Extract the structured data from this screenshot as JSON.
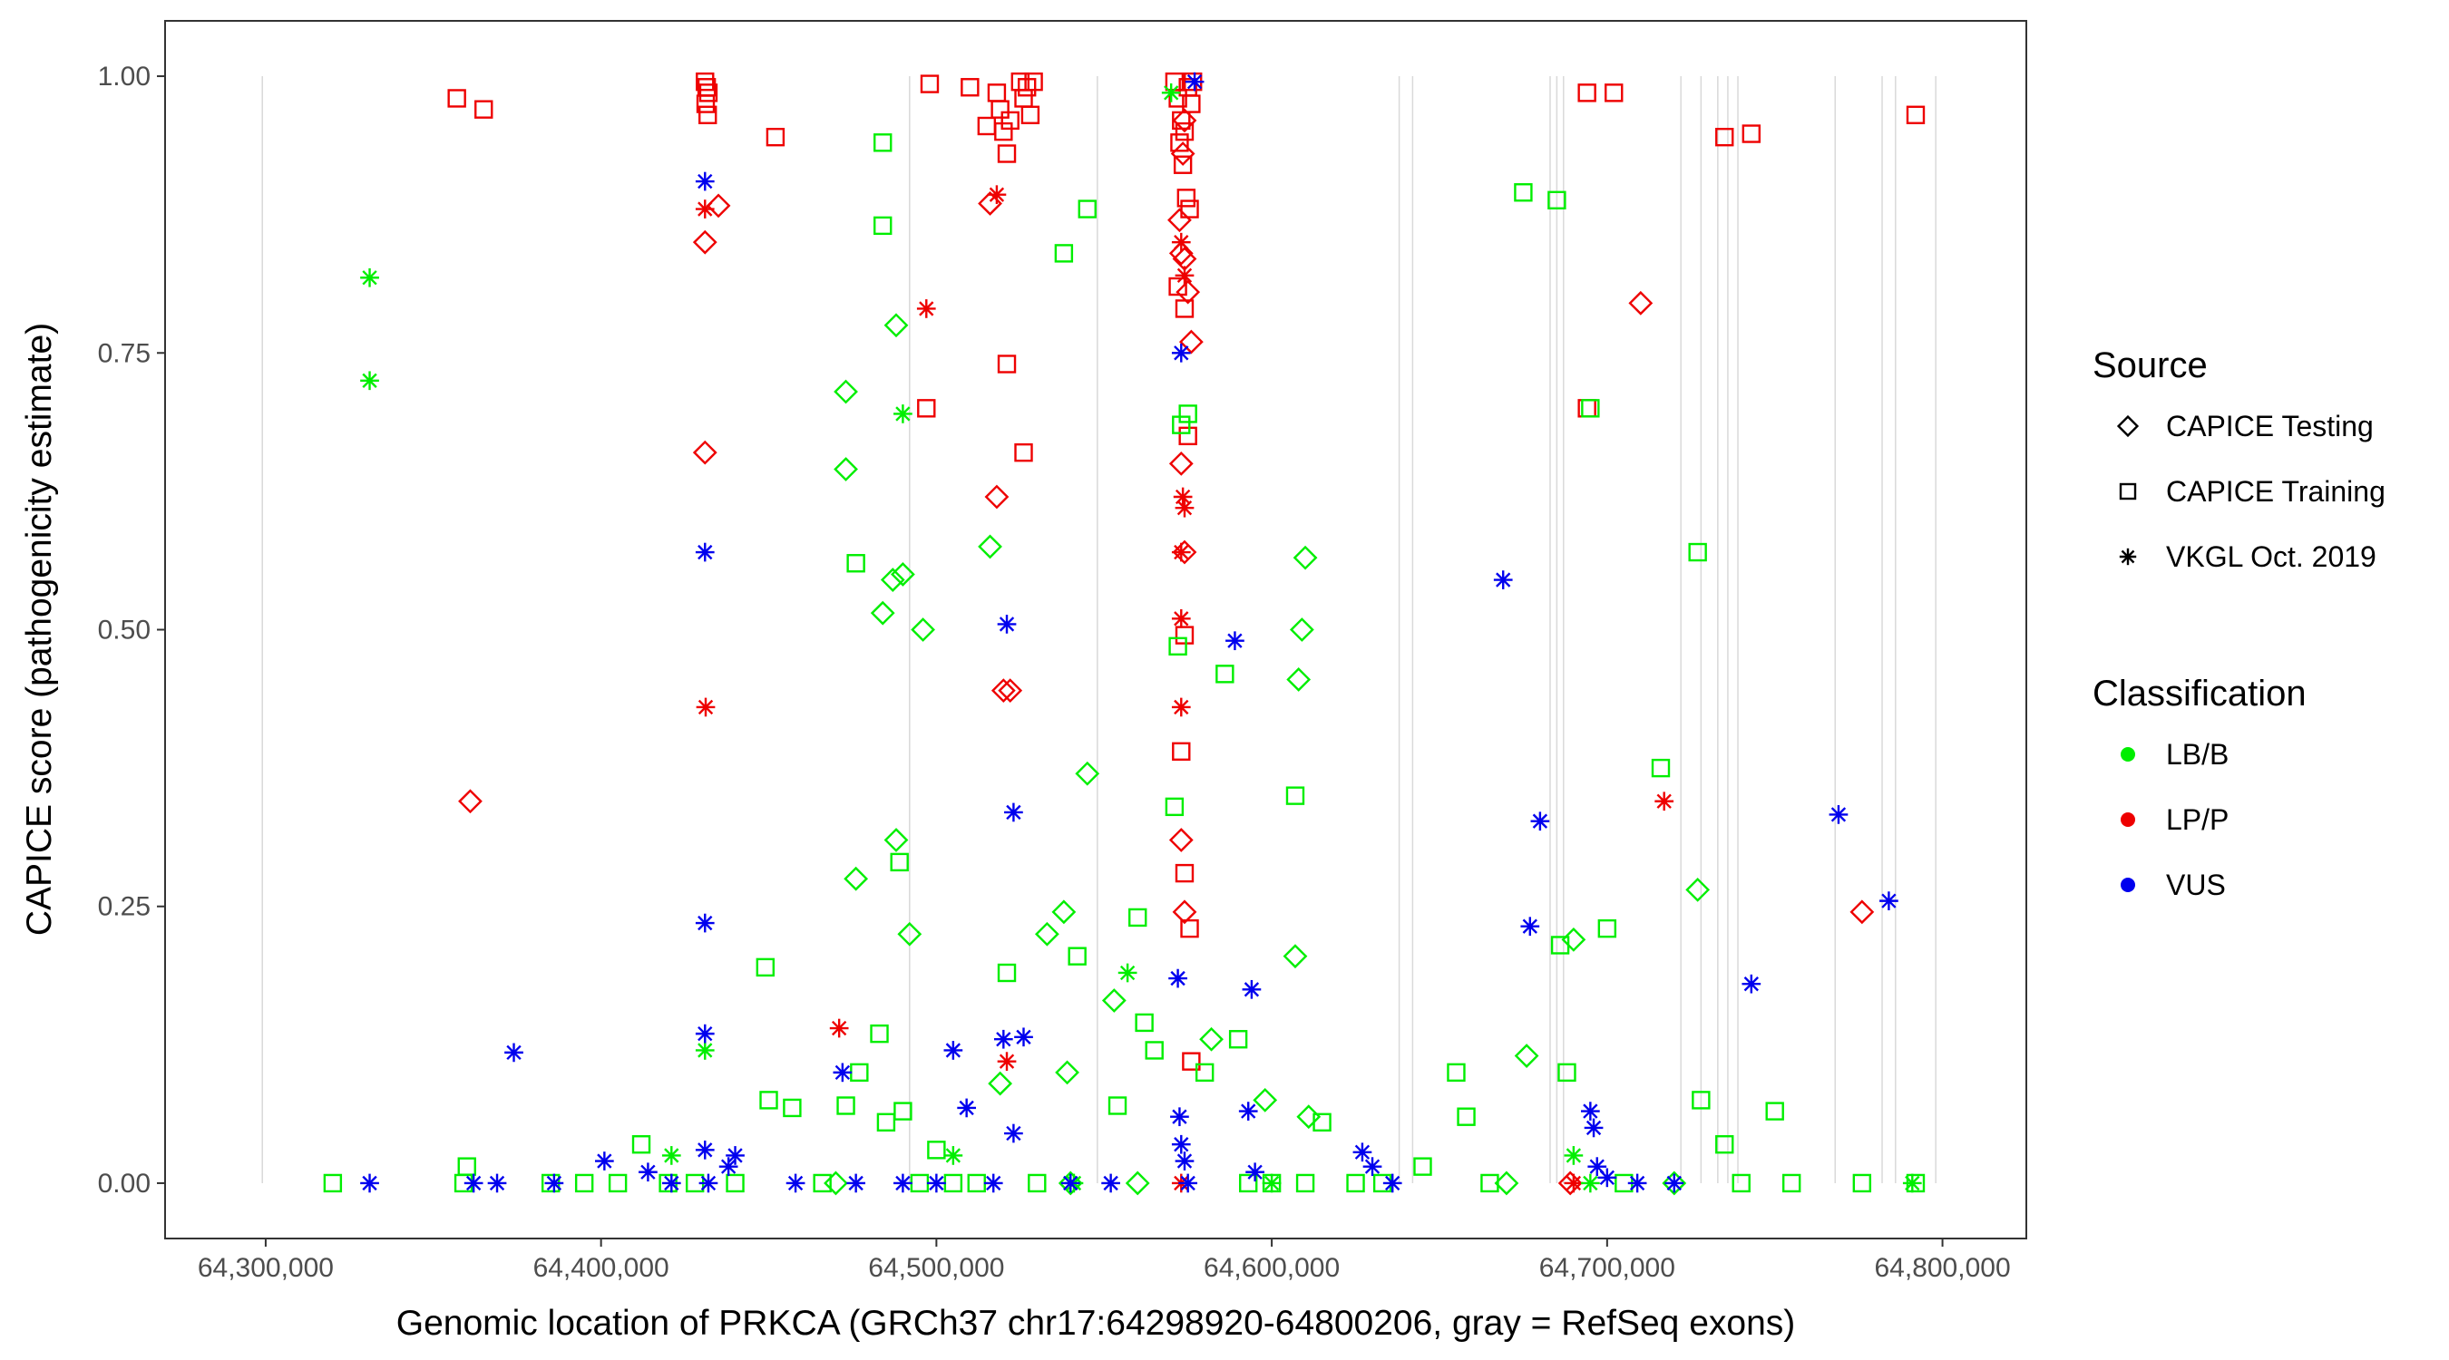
{
  "chart_data": {
    "type": "scatter",
    "xlabel": "Genomic location of PRKCA (GRCh37 chr17:64298920-64800206, gray = RefSeq exons)",
    "ylabel": "CAPICE score (pathogenicity estimate)",
    "xlim": [
      64270000,
      64825000
    ],
    "ylim": [
      -0.05,
      1.05
    ],
    "x_ticks": [
      64300000,
      64400000,
      64500000,
      64600000,
      64700000,
      64800000
    ],
    "x_tick_labels": [
      "64,300,000",
      "64,400,000",
      "64,500,000",
      "64,600,000",
      "64,700,000",
      "64,800,000"
    ],
    "y_ticks": [
      0,
      0.25,
      0.5,
      0.75,
      1.0
    ],
    "y_tick_labels": [
      "0.00",
      "0.25",
      "0.50",
      "0.75",
      "1.00"
    ],
    "exon_positions": [
      64299000,
      64492000,
      64548000,
      64638000,
      64642000,
      64683000,
      64685000,
      64687000,
      64722000,
      64728000,
      64733000,
      64736000,
      64739000,
      64768000,
      64782000,
      64786000,
      64798000
    ],
    "legend": {
      "source_title": "Source",
      "source_items": [
        {
          "label": "CAPICE Testing",
          "shape": "diamond"
        },
        {
          "label": "CAPICE Training",
          "shape": "square"
        },
        {
          "label": "VKGL Oct. 2019",
          "shape": "star"
        }
      ],
      "class_title": "Classification",
      "class_items": [
        {
          "label": "LB/B",
          "color": "#00ee00"
        },
        {
          "label": "LP/P",
          "color": "#ee0000"
        },
        {
          "label": "VUS",
          "color": "#0000ee"
        }
      ]
    },
    "series": [
      {
        "source": "CAPICE Training",
        "class": "LP/P",
        "points": [
          [
            64357000,
            0.98
          ],
          [
            64365000,
            0.97
          ],
          [
            64431000,
            0.995
          ],
          [
            64431500,
            0.99
          ],
          [
            64432000,
            0.985
          ],
          [
            64431200,
            0.975
          ],
          [
            64431800,
            0.965
          ],
          [
            64452000,
            0.945
          ],
          [
            64498000,
            0.993
          ],
          [
            64510000,
            0.99
          ],
          [
            64515000,
            0.955
          ],
          [
            64518000,
            0.985
          ],
          [
            64519000,
            0.97
          ],
          [
            64520000,
            0.95
          ],
          [
            64521000,
            0.93
          ],
          [
            64522000,
            0.96
          ],
          [
            64525000,
            0.995
          ],
          [
            64526000,
            0.98
          ],
          [
            64527000,
            0.99
          ],
          [
            64528000,
            0.965
          ],
          [
            64529000,
            0.995
          ],
          [
            64571000,
            0.995
          ],
          [
            64572000,
            0.98
          ],
          [
            64573000,
            0.96
          ],
          [
            64574000,
            0.95
          ],
          [
            64575000,
            0.99
          ],
          [
            64576000,
            0.975
          ],
          [
            64572500,
            0.94
          ],
          [
            64573500,
            0.92
          ],
          [
            64574500,
            0.89
          ],
          [
            64575500,
            0.88
          ],
          [
            64576500,
            0.995
          ],
          [
            64572000,
            0.81
          ],
          [
            64574000,
            0.79
          ],
          [
            64521000,
            0.74
          ],
          [
            64497000,
            0.7
          ],
          [
            64526000,
            0.66
          ],
          [
            64575000,
            0.675
          ],
          [
            64574000,
            0.495
          ],
          [
            64573000,
            0.39
          ],
          [
            64574000,
            0.28
          ],
          [
            64575500,
            0.23
          ],
          [
            64576000,
            0.11
          ],
          [
            64694000,
            0.985
          ],
          [
            64702000,
            0.985
          ],
          [
            64735000,
            0.945
          ],
          [
            64743000,
            0.948
          ],
          [
            64792000,
            0.965
          ],
          [
            64694000,
            0.7
          ]
        ]
      },
      {
        "source": "CAPICE Testing",
        "class": "LP/P",
        "points": [
          [
            64431000,
            0.85
          ],
          [
            64435000,
            0.883
          ],
          [
            64431000,
            0.66
          ],
          [
            64516000,
            0.885
          ],
          [
            64361000,
            0.345
          ],
          [
            64518000,
            0.62
          ],
          [
            64520000,
            0.445
          ],
          [
            64522000,
            0.445
          ],
          [
            64573000,
            0.84
          ],
          [
            64574000,
            0.835
          ],
          [
            64575000,
            0.805
          ],
          [
            64576000,
            0.76
          ],
          [
            64573000,
            0.65
          ],
          [
            64574000,
            0.57
          ],
          [
            64573000,
            0.31
          ],
          [
            64574000,
            0.245
          ],
          [
            64574000,
            0.96
          ],
          [
            64573500,
            0.93
          ],
          [
            64572500,
            0.87
          ],
          [
            64710000,
            0.795
          ],
          [
            64776000,
            0.245
          ],
          [
            64689000,
            0.0
          ]
        ]
      },
      {
        "source": "VKGL Oct. 2019",
        "class": "LP/P",
        "points": [
          [
            64431000,
            0.88
          ],
          [
            64431200,
            0.43
          ],
          [
            64471000,
            0.14
          ],
          [
            64497000,
            0.79
          ],
          [
            64518000,
            0.893
          ],
          [
            64521000,
            0.11
          ],
          [
            64573000,
            0.85
          ],
          [
            64574000,
            0.82
          ],
          [
            64573500,
            0.62
          ],
          [
            64574000,
            0.61
          ],
          [
            64573000,
            0.57
          ],
          [
            64573000,
            0.51
          ],
          [
            64573000,
            0.43
          ],
          [
            64573000,
            0.0
          ],
          [
            64717000,
            0.345
          ],
          [
            64690000,
            0.0
          ]
        ]
      },
      {
        "source": "CAPICE Training",
        "class": "LB/B",
        "points": [
          [
            64320000,
            0.0
          ],
          [
            64360000,
            0.015
          ],
          [
            64359000,
            0.0
          ],
          [
            64385000,
            0.0
          ],
          [
            64395000,
            0.0
          ],
          [
            64405000,
            0.0
          ],
          [
            64412000,
            0.035
          ],
          [
            64420000,
            0.0
          ],
          [
            64428000,
            0.0
          ],
          [
            64440000,
            0.0
          ],
          [
            64449000,
            0.195
          ],
          [
            64450000,
            0.075
          ],
          [
            64457000,
            0.068
          ],
          [
            64466000,
            0.0
          ],
          [
            64473000,
            0.07
          ],
          [
            64476000,
            0.56
          ],
          [
            64477000,
            0.1
          ],
          [
            64483000,
            0.135
          ],
          [
            64484000,
            0.94
          ],
          [
            64484000,
            0.865
          ],
          [
            64485000,
            0.055
          ],
          [
            64489000,
            0.29
          ],
          [
            64490000,
            0.065
          ],
          [
            64495000,
            0.0
          ],
          [
            64500000,
            0.03
          ],
          [
            64505000,
            0.0
          ],
          [
            64512000,
            0.0
          ],
          [
            64521000,
            0.19
          ],
          [
            64530000,
            0.0
          ],
          [
            64538000,
            0.84
          ],
          [
            64542000,
            0.205
          ],
          [
            64545000,
            0.88
          ],
          [
            64554000,
            0.07
          ],
          [
            64560000,
            0.24
          ],
          [
            64562000,
            0.145
          ],
          [
            64565000,
            0.12
          ],
          [
            64571000,
            0.34
          ],
          [
            64572000,
            0.485
          ],
          [
            64573000,
            0.685
          ],
          [
            64575000,
            0.695
          ],
          [
            64580000,
            0.1
          ],
          [
            64586000,
            0.46
          ],
          [
            64590000,
            0.13
          ],
          [
            64593000,
            0.0
          ],
          [
            64600000,
            0.0
          ],
          [
            64607000,
            0.35
          ],
          [
            64610000,
            0.0
          ],
          [
            64615000,
            0.055
          ],
          [
            64625000,
            0.0
          ],
          [
            64633000,
            0.0
          ],
          [
            64645000,
            0.015
          ],
          [
            64655000,
            0.1
          ],
          [
            64658000,
            0.06
          ],
          [
            64665000,
            0.0
          ],
          [
            64675000,
            0.895
          ],
          [
            64685000,
            0.888
          ],
          [
            64686000,
            0.215
          ],
          [
            64688000,
            0.1
          ],
          [
            64695000,
            0.7
          ],
          [
            64700000,
            0.23
          ],
          [
            64705000,
            0.0
          ],
          [
            64716000,
            0.375
          ],
          [
            64727000,
            0.57
          ],
          [
            64728000,
            0.075
          ],
          [
            64735000,
            0.035
          ],
          [
            64740000,
            0.0
          ],
          [
            64750000,
            0.065
          ],
          [
            64755000,
            0.0
          ],
          [
            64776000,
            0.0
          ],
          [
            64792000,
            0.0
          ]
        ]
      },
      {
        "source": "CAPICE Testing",
        "class": "LB/B",
        "points": [
          [
            64473000,
            0.715
          ],
          [
            64473000,
            0.645
          ],
          [
            64476000,
            0.275
          ],
          [
            64484000,
            0.515
          ],
          [
            64487000,
            0.545
          ],
          [
            64488000,
            0.775
          ],
          [
            64488000,
            0.31
          ],
          [
            64490000,
            0.55
          ],
          [
            64492000,
            0.225
          ],
          [
            64496000,
            0.5
          ],
          [
            64516000,
            0.575
          ],
          [
            64519000,
            0.09
          ],
          [
            64533000,
            0.225
          ],
          [
            64538000,
            0.245
          ],
          [
            64539000,
            0.1
          ],
          [
            64545000,
            0.37
          ],
          [
            64553000,
            0.165
          ],
          [
            64582000,
            0.13
          ],
          [
            64598000,
            0.075
          ],
          [
            64607000,
            0.205
          ],
          [
            64609000,
            0.5
          ],
          [
            64608000,
            0.455
          ],
          [
            64610000,
            0.565
          ],
          [
            64611000,
            0.06
          ],
          [
            64676000,
            0.115
          ],
          [
            64690000,
            0.22
          ],
          [
            64727000,
            0.265
          ],
          [
            64670000,
            0.0
          ],
          [
            64720000,
            0.0
          ],
          [
            64560000,
            0.0
          ],
          [
            64540000,
            0.0
          ],
          [
            64470000,
            0.0
          ]
        ]
      },
      {
        "source": "VKGL Oct. 2019",
        "class": "LB/B",
        "points": [
          [
            64331000,
            0.818
          ],
          [
            64331000,
            0.725
          ],
          [
            64431000,
            0.12
          ],
          [
            64490000,
            0.695
          ],
          [
            64541000,
            0.0
          ],
          [
            64557000,
            0.19
          ],
          [
            64570000,
            0.985
          ],
          [
            64421000,
            0.025
          ],
          [
            64505000,
            0.025
          ],
          [
            64600000,
            0.0
          ],
          [
            64791000,
            0.0
          ],
          [
            64695000,
            0.0
          ],
          [
            64690000,
            0.025
          ]
        ]
      },
      {
        "source": "VKGL Oct. 2019",
        "class": "VUS",
        "points": [
          [
            64331000,
            0.0
          ],
          [
            64362000,
            0.0
          ],
          [
            64369000,
            0.0
          ],
          [
            64374000,
            0.118
          ],
          [
            64386000,
            0.0
          ],
          [
            64401000,
            0.02
          ],
          [
            64414000,
            0.01
          ],
          [
            64421000,
            0.0
          ],
          [
            64431000,
            0.905
          ],
          [
            64431000,
            0.57
          ],
          [
            64431000,
            0.235
          ],
          [
            64431000,
            0.135
          ],
          [
            64431000,
            0.03
          ],
          [
            64432000,
            0.0
          ],
          [
            64438000,
            0.015
          ],
          [
            64440000,
            0.025
          ],
          [
            64458000,
            0.0
          ],
          [
            64472000,
            0.1
          ],
          [
            64476000,
            0.0
          ],
          [
            64490000,
            0.0
          ],
          [
            64500000,
            0.0
          ],
          [
            64505000,
            0.12
          ],
          [
            64509000,
            0.068
          ],
          [
            64517000,
            0.0
          ],
          [
            64520000,
            0.13
          ],
          [
            64521000,
            0.505
          ],
          [
            64523000,
            0.335
          ],
          [
            64523000,
            0.045
          ],
          [
            64526000,
            0.132
          ],
          [
            64540000,
            0.0
          ],
          [
            64552000,
            0.0
          ],
          [
            64572000,
            0.185
          ],
          [
            64573000,
            0.75
          ],
          [
            64572500,
            0.06
          ],
          [
            64573000,
            0.035
          ],
          [
            64574000,
            0.02
          ],
          [
            64575000,
            0.0
          ],
          [
            64577000,
            0.995
          ],
          [
            64589000,
            0.49
          ],
          [
            64593000,
            0.065
          ],
          [
            64594000,
            0.175
          ],
          [
            64595000,
            0.01
          ],
          [
            64627000,
            0.028
          ],
          [
            64630000,
            0.015
          ],
          [
            64636000,
            0.0
          ],
          [
            64669000,
            0.545
          ],
          [
            64677000,
            0.232
          ],
          [
            64680000,
            0.327
          ],
          [
            64695000,
            0.065
          ],
          [
            64696000,
            0.05
          ],
          [
            64697000,
            0.015
          ],
          [
            64700000,
            0.005
          ],
          [
            64709000,
            0.0
          ],
          [
            64720000,
            0.0
          ],
          [
            64743000,
            0.18
          ],
          [
            64769000,
            0.333
          ],
          [
            64784000,
            0.255
          ]
        ]
      }
    ]
  }
}
